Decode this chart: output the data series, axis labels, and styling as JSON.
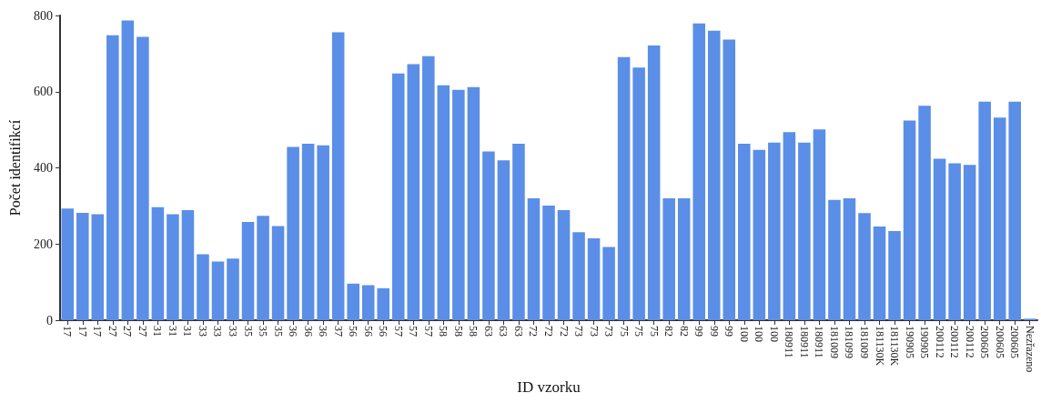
{
  "chart_data": {
    "type": "bar",
    "xlabel": "ID vzorku",
    "ylabel": "Počet identifikcí",
    "categories": [
      "17",
      "17",
      "17",
      "27",
      "27",
      "27",
      "31",
      "31",
      "31",
      "33",
      "33",
      "33",
      "35",
      "35",
      "35",
      "36",
      "36",
      "36",
      "37",
      "56",
      "56",
      "56",
      "57",
      "57",
      "57",
      "58",
      "58",
      "58",
      "63",
      "63",
      "63",
      "72",
      "72",
      "72",
      "73",
      "73",
      "73",
      "75",
      "75",
      "75",
      "82",
      "82",
      "99",
      "99",
      "99",
      "100",
      "100",
      "100",
      "180911",
      "180911",
      "180911",
      "181009",
      "181099",
      "181009",
      "181130K",
      "181130K",
      "190905",
      "190905",
      "200112",
      "200112",
      "200112",
      "200605",
      "200605",
      "200605",
      "Nezřazeno"
    ],
    "values": [
      293,
      282,
      278,
      748,
      787,
      744,
      297,
      278,
      289,
      173,
      154,
      162,
      258,
      274,
      247,
      455,
      463,
      459,
      756,
      96,
      92,
      84,
      648,
      672,
      693,
      617,
      605,
      612,
      443,
      420,
      463,
      320,
      301,
      289,
      231,
      215,
      192,
      691,
      663,
      721,
      320,
      320,
      779,
      760,
      737,
      463,
      447,
      466,
      494,
      466,
      501,
      316,
      320,
      281,
      246,
      234,
      524,
      563,
      424,
      412,
      408,
      574,
      532,
      574,
      4
    ],
    "color": "#5b8ee6",
    "ylim": [
      0,
      800
    ],
    "yticks": [
      0,
      200,
      400,
      600,
      800
    ],
    "grid": false
  }
}
